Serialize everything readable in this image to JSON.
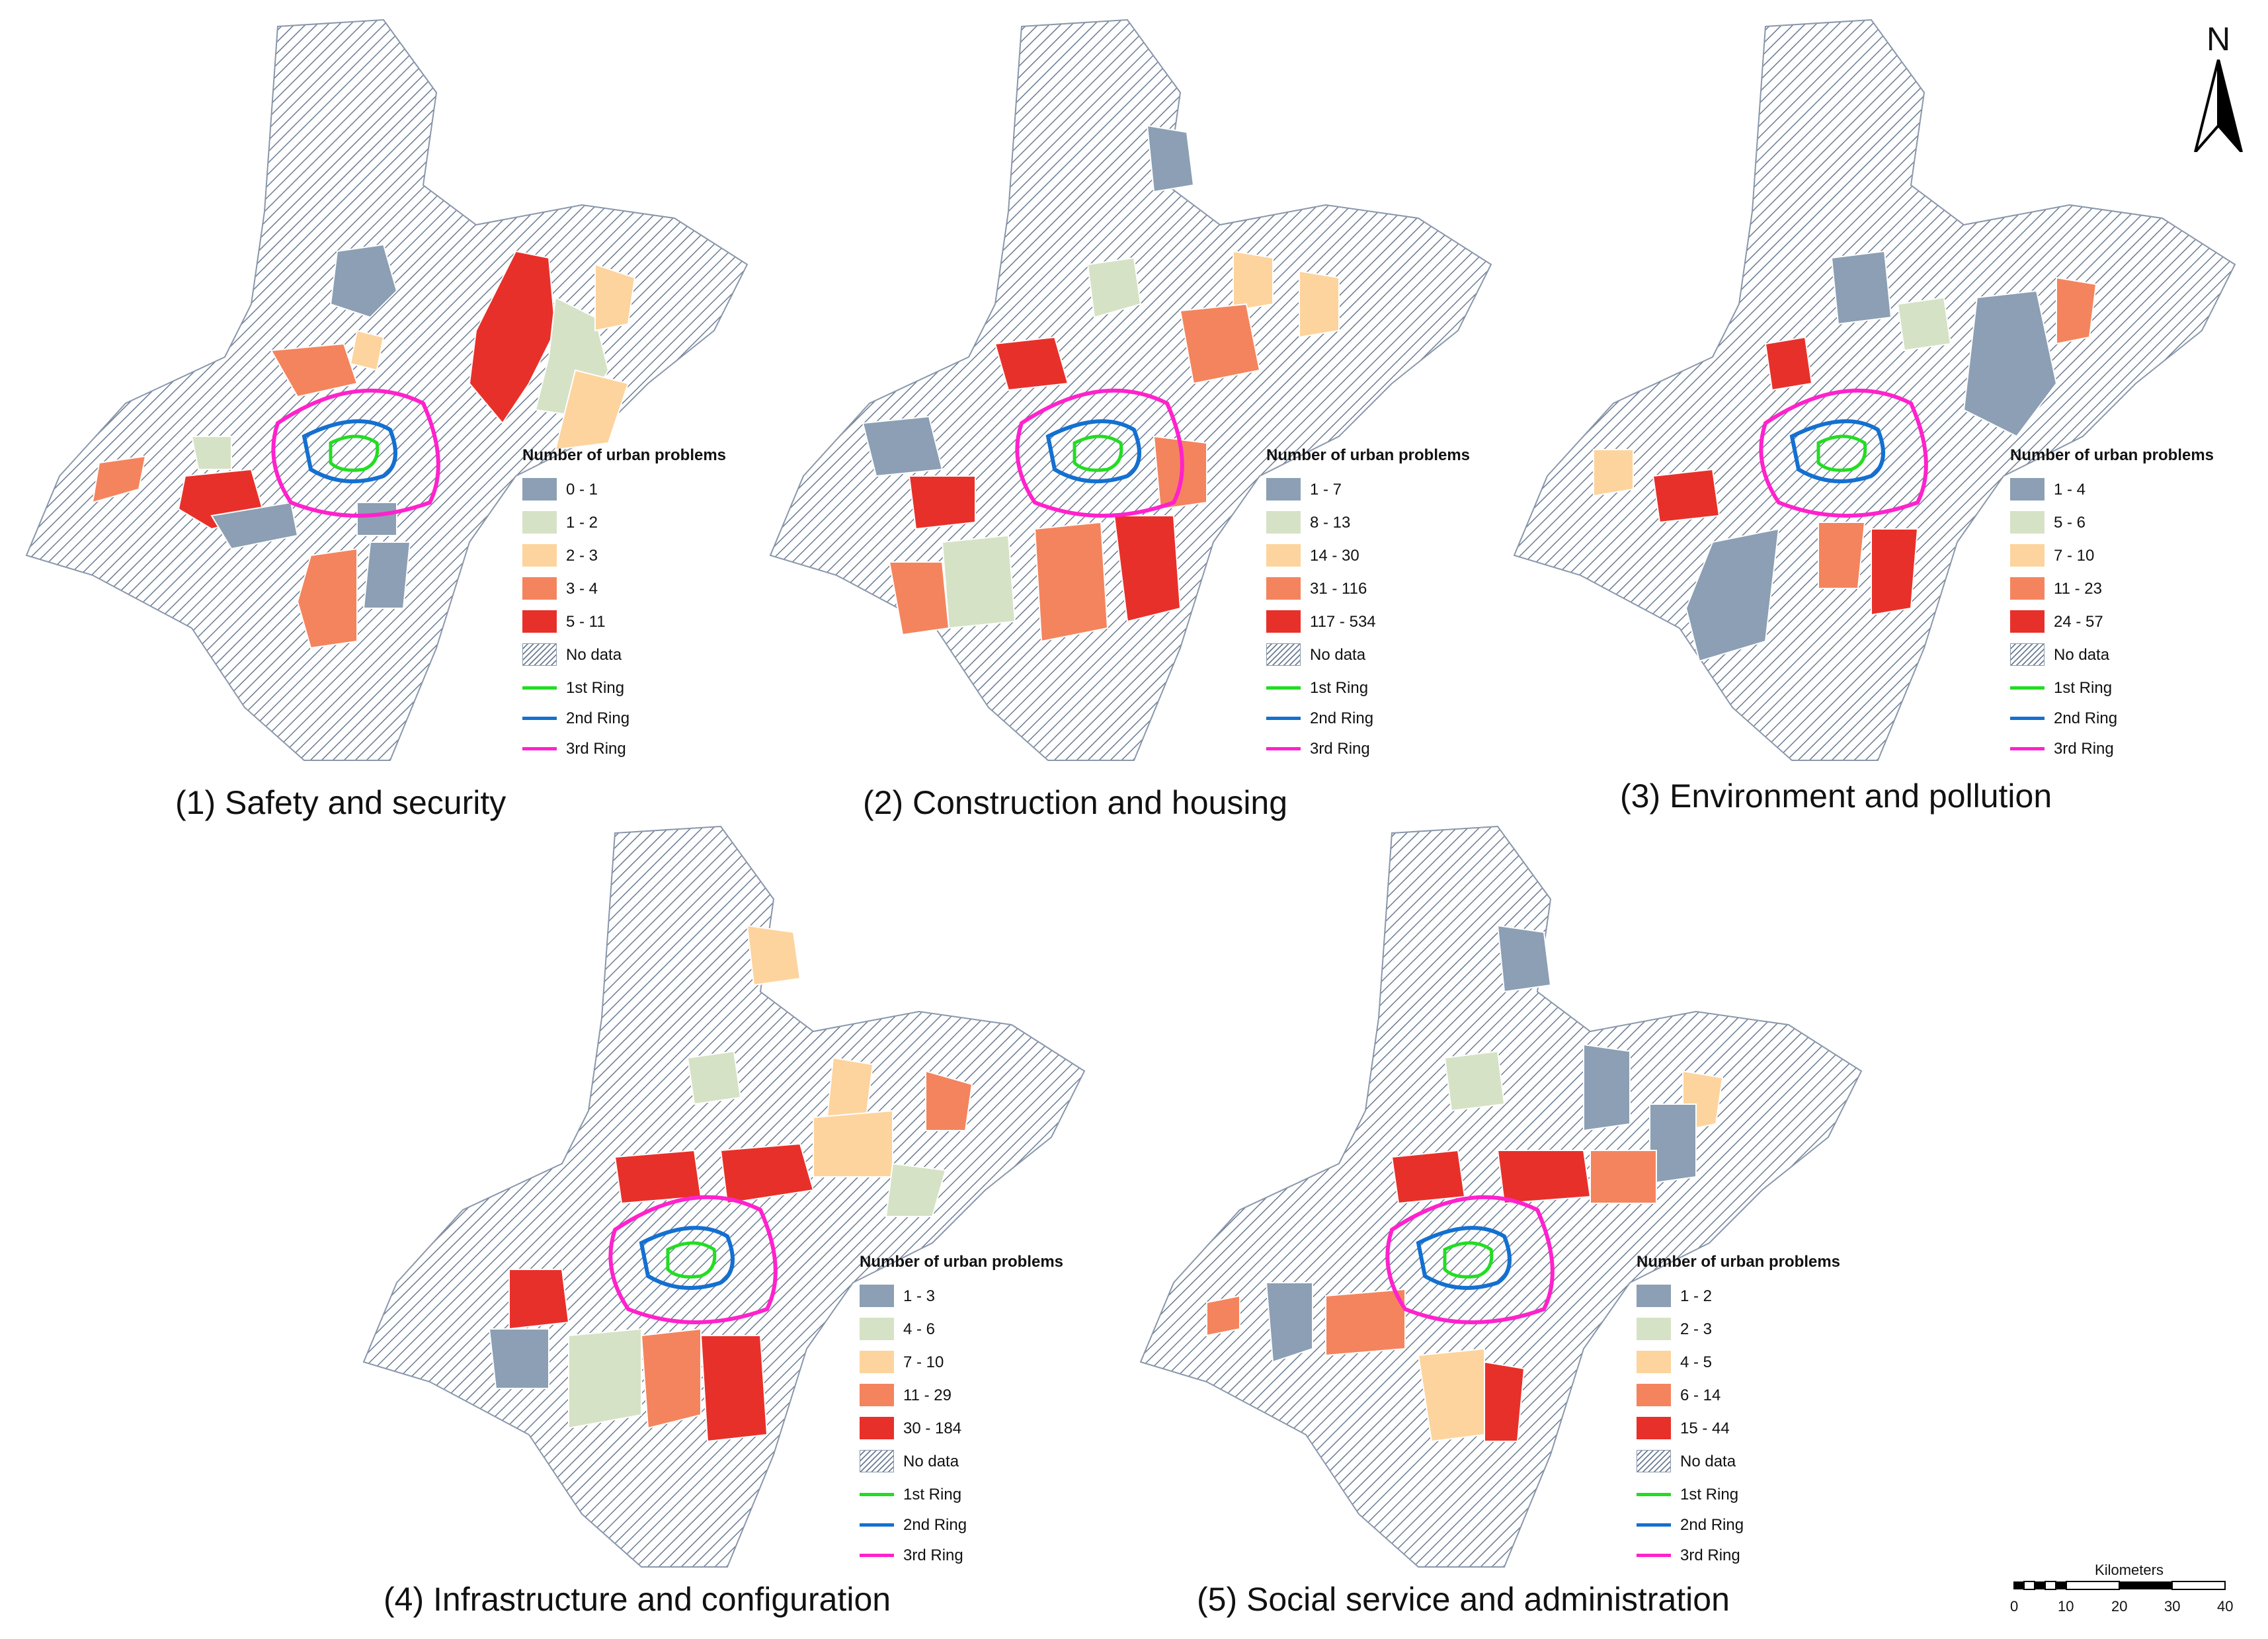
{
  "legend_title": "Number of urban problems",
  "no_data_label": "No data",
  "rings": [
    {
      "label": "1st Ring",
      "color": "#22dd22"
    },
    {
      "label": "2nd Ring",
      "color": "#1470d0"
    },
    {
      "label": "3rd Ring",
      "color": "#ff22cc"
    }
  ],
  "class_colors": [
    "#8c9fb4",
    "#d6e2c5",
    "#fdd49e",
    "#f4845e",
    "#e8302a"
  ],
  "panels": [
    {
      "caption": "(1) Safety and security",
      "classes": [
        "0 - 1",
        "1 - 2",
        "2 - 3",
        "3 - 4",
        "5 - 11"
      ]
    },
    {
      "caption": "(2) Construction and housing",
      "classes": [
        "1 - 7",
        "8 - 13",
        "14 - 30",
        "31 - 116",
        "117 - 534"
      ]
    },
    {
      "caption": "(3) Environment and pollution",
      "classes": [
        "1 - 4",
        "5 - 6",
        "7 - 10",
        "11 - 23",
        "24 - 57"
      ]
    },
    {
      "caption": "(4) Infrastructure and configuration",
      "classes": [
        "1 - 3",
        "4 - 6",
        "7 - 10",
        "11 - 29",
        "30 - 184"
      ]
    },
    {
      "caption": "(5) Social service and administration",
      "classes": [
        "1 - 2",
        "2 - 3",
        "4 - 5",
        "6 - 14",
        "15 - 44"
      ]
    }
  ],
  "north_label": "N",
  "scale": {
    "title": "Kilometers",
    "ticks": [
      "0",
      "10",
      "20",
      "30",
      "40"
    ]
  }
}
